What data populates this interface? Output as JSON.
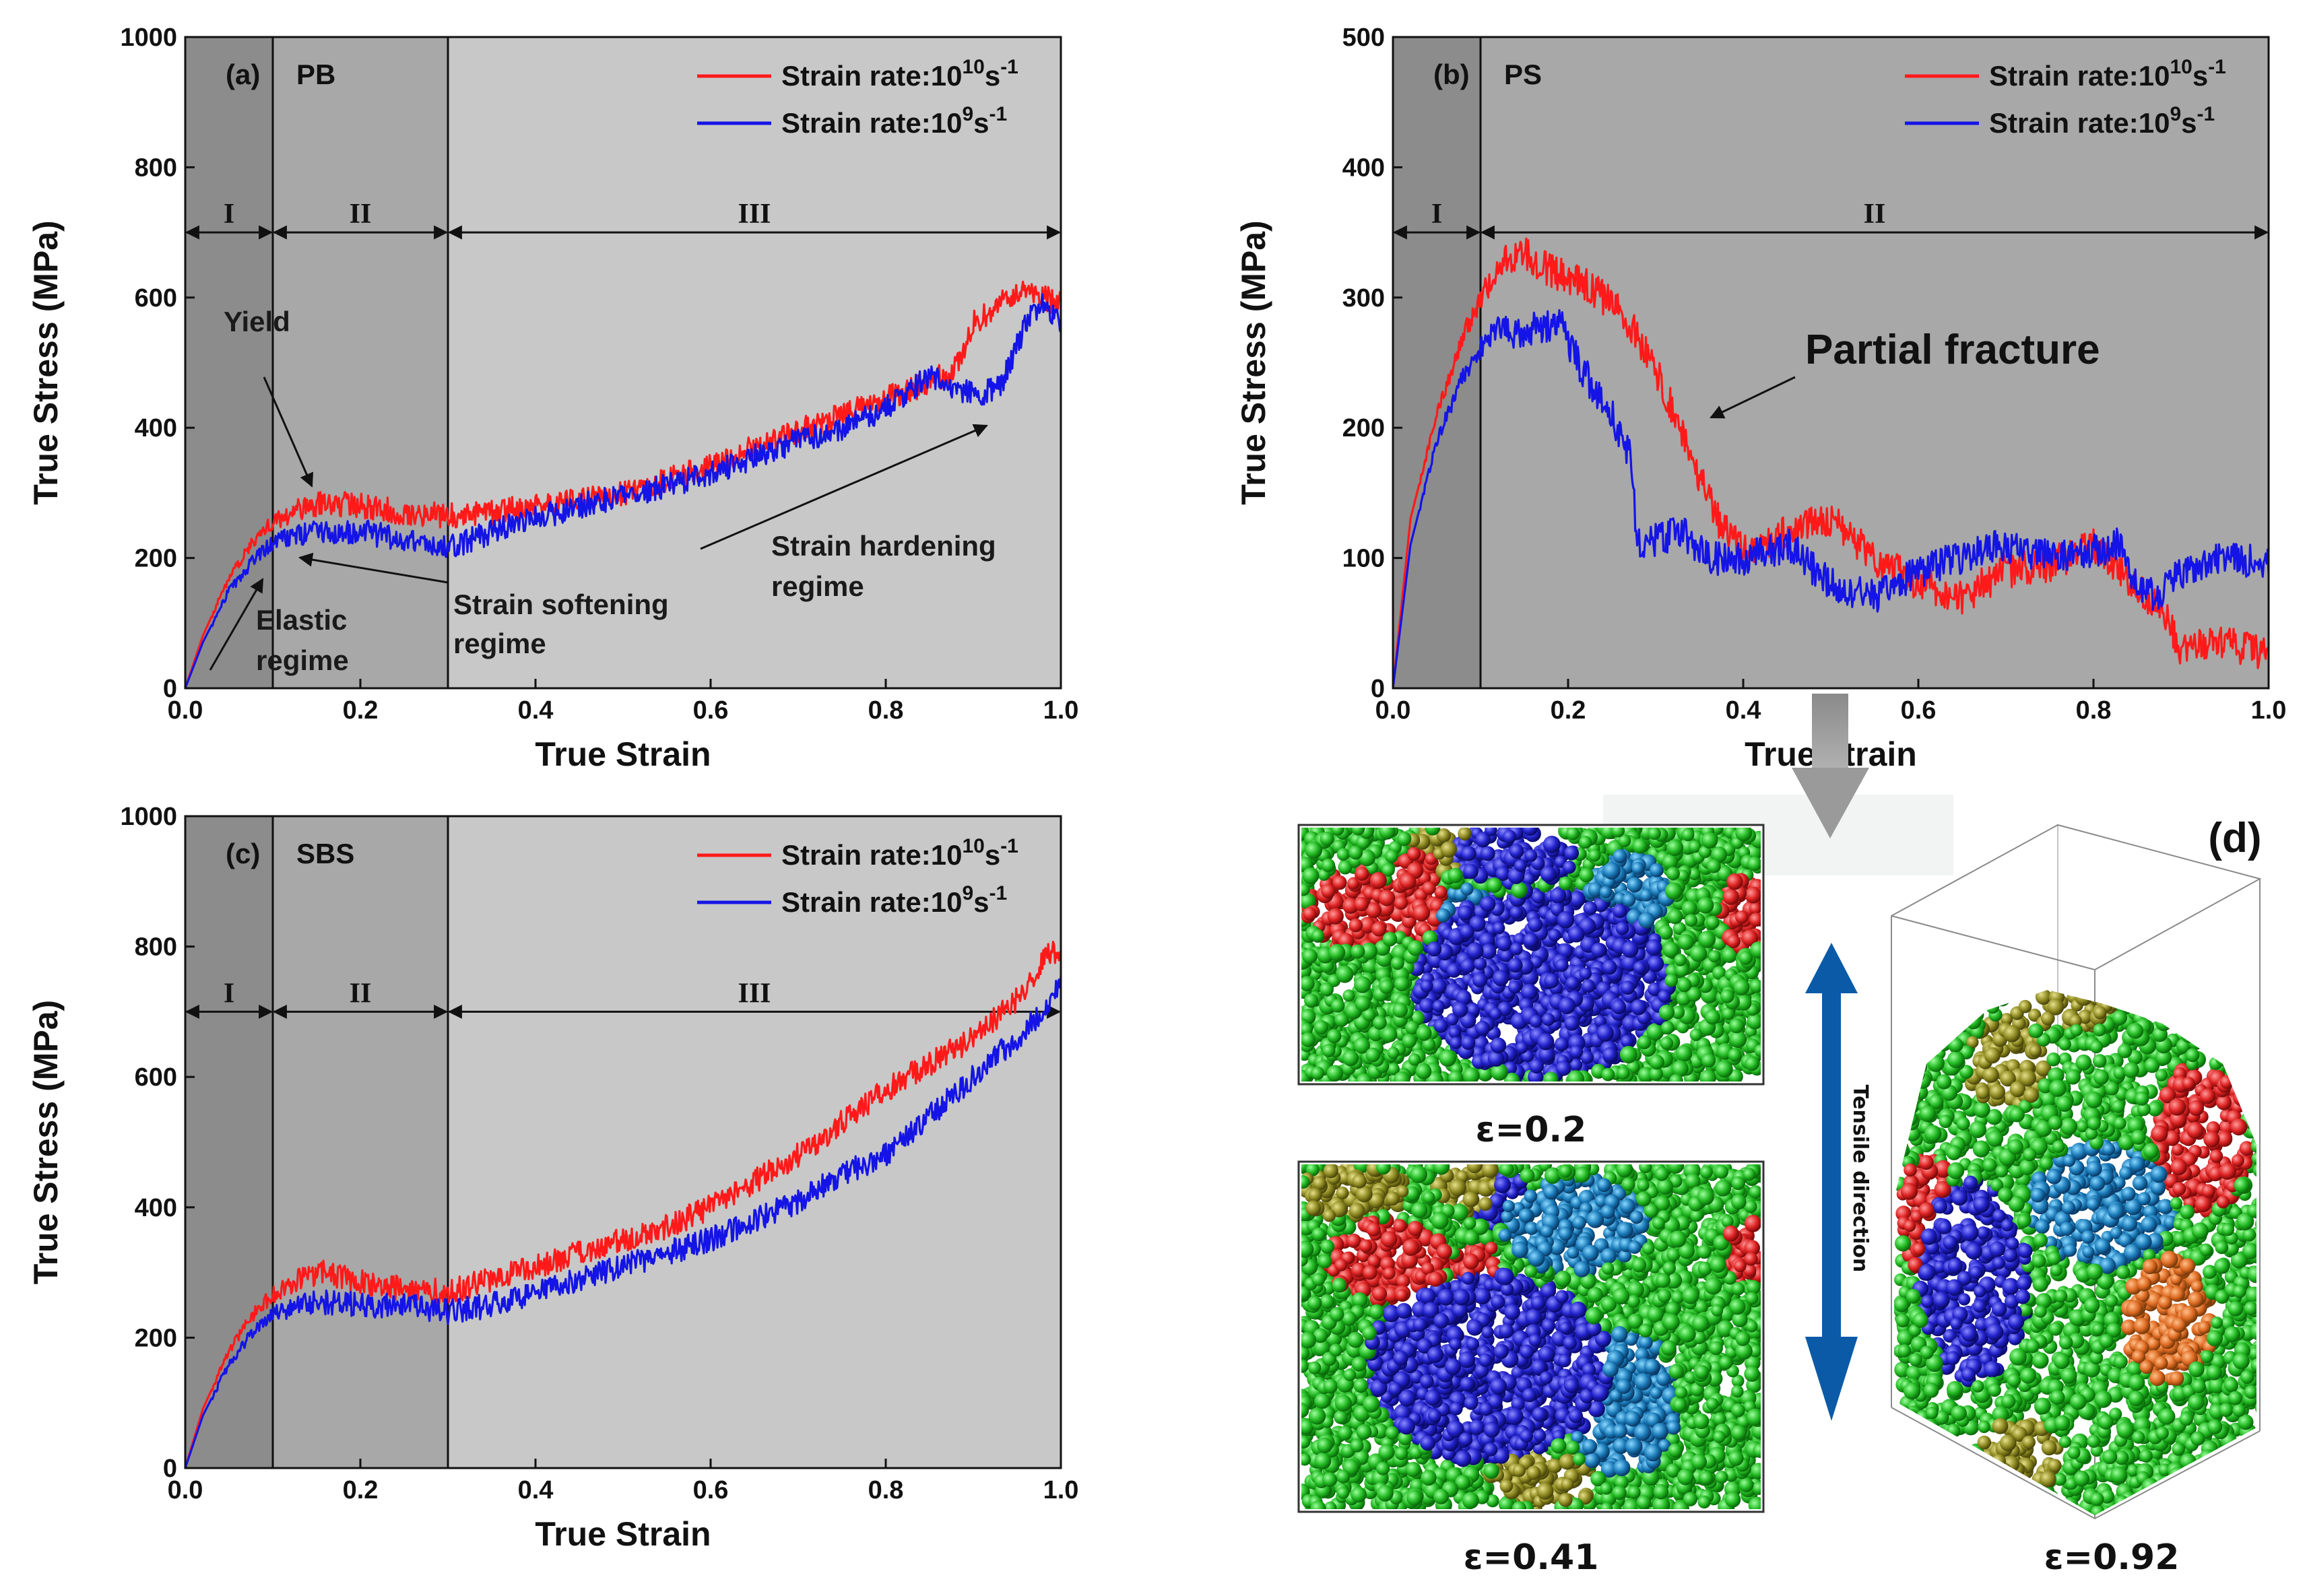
{
  "figure": {
    "panel_d_label": "(d)",
    "tensile_direction": "Tensile direction",
    "snapshots": [
      {
        "label": "ε=0.2",
        "strain": 0.2
      },
      {
        "label": "ε=0.41",
        "strain": 0.41
      },
      {
        "label": "ε=0.92",
        "strain": 0.92
      }
    ],
    "colors": {
      "red_series": "#ff1a1a",
      "blue_series": "#1414e6",
      "regime_dark": "#8c8c8c",
      "regime_mid": "#a8a8a8",
      "regime_light": "#c8c8c8"
    }
  },
  "chart_data": [
    {
      "id": "a",
      "type": "line",
      "panel_label": "(a)",
      "material": "PB",
      "xlabel": "True Strain",
      "ylabel": "True Stress (MPa)",
      "xlim": [
        0,
        1.0
      ],
      "ylim": [
        0,
        1000
      ],
      "xticks": [
        "0.0",
        "0.2",
        "0.4",
        "0.6",
        "0.8",
        "1.0"
      ],
      "yticks": [
        "0",
        "200",
        "400",
        "600",
        "800",
        "1000"
      ],
      "legend_pos": "top-right",
      "regimes": [
        {
          "label": "I",
          "from": 0.0,
          "to": 0.1
        },
        {
          "label": "II",
          "from": 0.1,
          "to": 0.3
        },
        {
          "label": "III",
          "from": 0.3,
          "to": 1.0
        }
      ],
      "regime_arrow_y": 700,
      "series": [
        {
          "name": "10^10",
          "legend_base": "Strain rate:10",
          "legend_exp": "10",
          "legend_unit": "s",
          "legend_unit_exp": "-1",
          "color": "#ff1a1a",
          "x": [
            0,
            0.02,
            0.05,
            0.08,
            0.1,
            0.13,
            0.16,
            0.2,
            0.25,
            0.3,
            0.35,
            0.4,
            0.45,
            0.5,
            0.55,
            0.6,
            0.65,
            0.7,
            0.75,
            0.8,
            0.85,
            0.88,
            0.9,
            0.93,
            0.96,
            0.98,
            1.0
          ],
          "y": [
            0,
            80,
            170,
            230,
            255,
            275,
            285,
            280,
            270,
            265,
            270,
            280,
            290,
            300,
            320,
            340,
            370,
            395,
            420,
            445,
            470,
            490,
            560,
            590,
            610,
            600,
            590
          ]
        },
        {
          "name": "10^9",
          "legend_base": "Strain rate:10",
          "legend_exp": "9",
          "legend_unit": "s",
          "legend_unit_exp": "-1",
          "color": "#1414e6",
          "x": [
            0,
            0.02,
            0.05,
            0.08,
            0.1,
            0.13,
            0.16,
            0.2,
            0.25,
            0.3,
            0.35,
            0.4,
            0.45,
            0.5,
            0.55,
            0.6,
            0.65,
            0.7,
            0.75,
            0.8,
            0.85,
            0.88,
            0.9,
            0.93,
            0.96,
            0.98,
            1.0
          ],
          "y": [
            0,
            70,
            150,
            200,
            225,
            235,
            240,
            240,
            230,
            215,
            240,
            260,
            280,
            295,
            310,
            330,
            355,
            380,
            400,
            430,
            480,
            460,
            450,
            460,
            560,
            590,
            560
          ]
        }
      ],
      "annotations": [
        {
          "text": "Yield"
        },
        {
          "text": "Elastic",
          "text2": "regime"
        },
        {
          "text": "Strain softening",
          "text2": "regime"
        },
        {
          "text": "Strain hardening",
          "text2": "regime"
        }
      ]
    },
    {
      "id": "b",
      "type": "line",
      "panel_label": "(b)",
      "material": "PS",
      "xlabel": "True strain",
      "ylabel": "True Stress (MPa)",
      "xlim": [
        0,
        1.0
      ],
      "ylim": [
        0,
        500
      ],
      "xticks": [
        "0.0",
        "0.2",
        "0.4",
        "0.6",
        "0.8",
        "1.0"
      ],
      "yticks": [
        "0",
        "100",
        "200",
        "300",
        "400",
        "500"
      ],
      "legend_pos": "top-right",
      "regimes": [
        {
          "label": "I",
          "from": 0.0,
          "to": 0.1
        },
        {
          "label": "II",
          "from": 0.1,
          "to": 1.0
        }
      ],
      "regime_arrow_y": 350,
      "series": [
        {
          "name": "10^10",
          "legend_base": "Strain rate:10",
          "legend_exp": "10",
          "legend_unit": "s",
          "legend_unit_exp": "-1",
          "color": "#ff1a1a",
          "x": [
            0,
            0.02,
            0.05,
            0.08,
            0.1,
            0.13,
            0.15,
            0.18,
            0.22,
            0.25,
            0.28,
            0.31,
            0.34,
            0.37,
            0.4,
            0.45,
            0.5,
            0.55,
            0.6,
            0.65,
            0.7,
            0.75,
            0.8,
            0.85,
            0.88,
            0.9,
            0.95,
            1.0
          ],
          "y": [
            0,
            130,
            210,
            270,
            300,
            330,
            335,
            320,
            310,
            295,
            270,
            230,
            180,
            130,
            105,
            120,
            130,
            100,
            80,
            70,
            90,
            95,
            110,
            75,
            60,
            30,
            35,
            25
          ]
        },
        {
          "name": "10^9",
          "legend_base": "Strain rate:10",
          "legend_exp": "9",
          "legend_unit": "s",
          "legend_unit_exp": "-1",
          "color": "#1414e6",
          "x": [
            0,
            0.02,
            0.05,
            0.08,
            0.1,
            0.12,
            0.14,
            0.16,
            0.19,
            0.22,
            0.25,
            0.27,
            0.28,
            0.3,
            0.33,
            0.36,
            0.4,
            0.45,
            0.5,
            0.55,
            0.6,
            0.65,
            0.7,
            0.75,
            0.8,
            0.83,
            0.85,
            0.87,
            0.9,
            0.95,
            1.0
          ],
          "y": [
            0,
            110,
            190,
            240,
            260,
            280,
            270,
            275,
            280,
            240,
            210,
            180,
            110,
            115,
            120,
            100,
            100,
            110,
            80,
            70,
            90,
            100,
            110,
            100,
            105,
            110,
            80,
            70,
            90,
            100,
            95
          ]
        }
      ],
      "annotations": [
        {
          "text": "Partial fracture"
        }
      ]
    },
    {
      "id": "c",
      "type": "line",
      "panel_label": "(c)",
      "material": "SBS",
      "xlabel": "True Strain",
      "ylabel": "True Stress (MPa)",
      "xlim": [
        0,
        1.0
      ],
      "ylim": [
        0,
        1000
      ],
      "xticks": [
        "0.0",
        "0.2",
        "0.4",
        "0.6",
        "0.8",
        "1.0"
      ],
      "yticks": [
        "0",
        "200",
        "400",
        "600",
        "800",
        "1000"
      ],
      "legend_pos": "top-right",
      "regimes": [
        {
          "label": "I",
          "from": 0.0,
          "to": 0.1
        },
        {
          "label": "II",
          "from": 0.1,
          "to": 0.3
        },
        {
          "label": "III",
          "from": 0.3,
          "to": 1.0
        }
      ],
      "regime_arrow_y": 700,
      "series": [
        {
          "name": "10^10",
          "legend_base": "Strain rate:10",
          "legend_exp": "10",
          "legend_unit": "s",
          "legend_unit_exp": "-1",
          "color": "#ff1a1a",
          "x": [
            0,
            0.02,
            0.05,
            0.08,
            0.1,
            0.13,
            0.16,
            0.2,
            0.25,
            0.3,
            0.35,
            0.4,
            0.45,
            0.5,
            0.55,
            0.6,
            0.65,
            0.7,
            0.75,
            0.8,
            0.85,
            0.9,
            0.95,
            0.98,
            1.0
          ],
          "y": [
            0,
            90,
            180,
            240,
            265,
            290,
            300,
            285,
            275,
            270,
            290,
            310,
            330,
            350,
            370,
            400,
            440,
            480,
            530,
            580,
            620,
            660,
            720,
            780,
            800
          ]
        },
        {
          "name": "10^9",
          "legend_base": "Strain rate:10",
          "legend_exp": "9",
          "legend_unit": "s",
          "legend_unit_exp": "-1",
          "color": "#1414e6",
          "x": [
            0,
            0.02,
            0.05,
            0.08,
            0.1,
            0.13,
            0.16,
            0.2,
            0.25,
            0.3,
            0.35,
            0.4,
            0.45,
            0.5,
            0.55,
            0.6,
            0.65,
            0.7,
            0.75,
            0.8,
            0.85,
            0.9,
            0.95,
            0.98,
            1.0
          ],
          "y": [
            0,
            80,
            160,
            215,
            235,
            250,
            255,
            250,
            250,
            240,
            250,
            270,
            290,
            310,
            330,
            350,
            380,
            410,
            450,
            480,
            540,
            600,
            660,
            700,
            740
          ]
        }
      ],
      "annotations": []
    }
  ]
}
